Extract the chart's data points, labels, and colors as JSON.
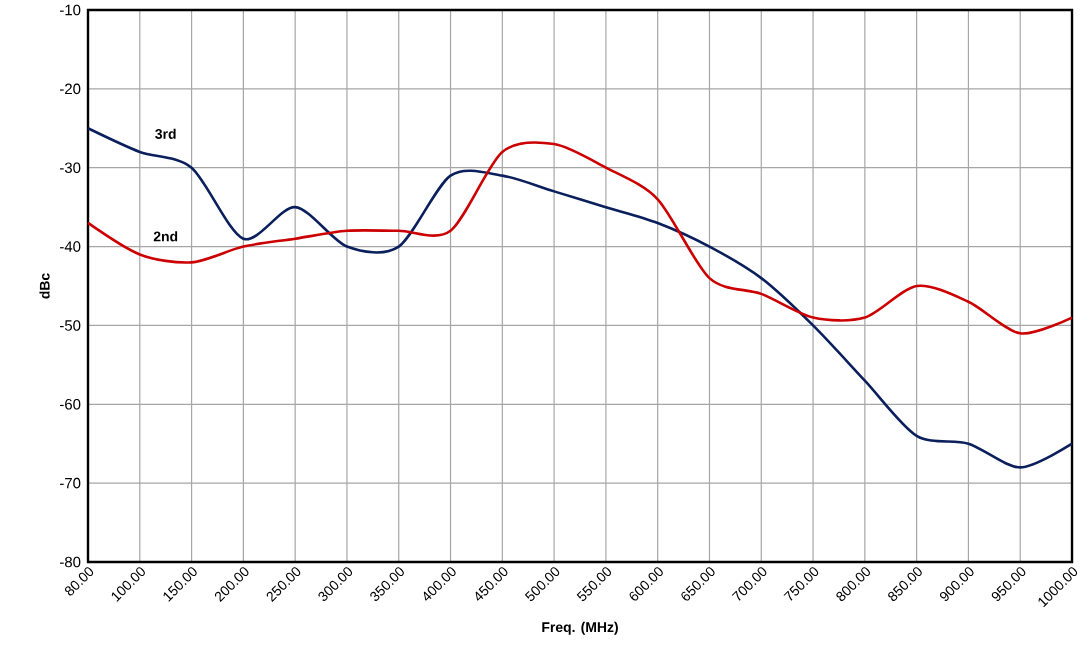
{
  "chart_data": {
    "type": "line",
    "xlabel": "Freq. (MHz)",
    "ylabel": "dBc",
    "categories": [
      "80.00",
      "100.00",
      "150.00",
      "200.00",
      "250.00",
      "300.00",
      "350.00",
      "400.00",
      "450.00",
      "500.00",
      "550.00",
      "600.00",
      "650.00",
      "700.00",
      "750.00",
      "800.00",
      "850.00",
      "900.00",
      "950.00",
      "1000.00"
    ],
    "series": [
      {
        "name": "3rd",
        "color": "#0a1f5c",
        "values": [
          -25,
          -28,
          -30,
          -39,
          -35,
          -40,
          -40,
          -31,
          -31,
          -33,
          -35,
          -37,
          -40,
          -44,
          -50,
          -57,
          -64,
          -65,
          -68,
          -65
        ]
      },
      {
        "name": "2nd",
        "color": "#cc0000",
        "values": [
          -37,
          -41,
          -42,
          -40,
          -39,
          -38,
          -38,
          -38,
          -28,
          -27,
          -30,
          -34,
          -44,
          -46,
          -49,
          -49,
          -45,
          -47,
          -51,
          -49
        ]
      }
    ],
    "ylim": [
      -80,
      -10
    ],
    "yticks": [
      -80,
      -70,
      -60,
      -50,
      -40,
      -30,
      -20,
      -10
    ],
    "grid": true,
    "marker": "none",
    "line_style": "solid"
  }
}
